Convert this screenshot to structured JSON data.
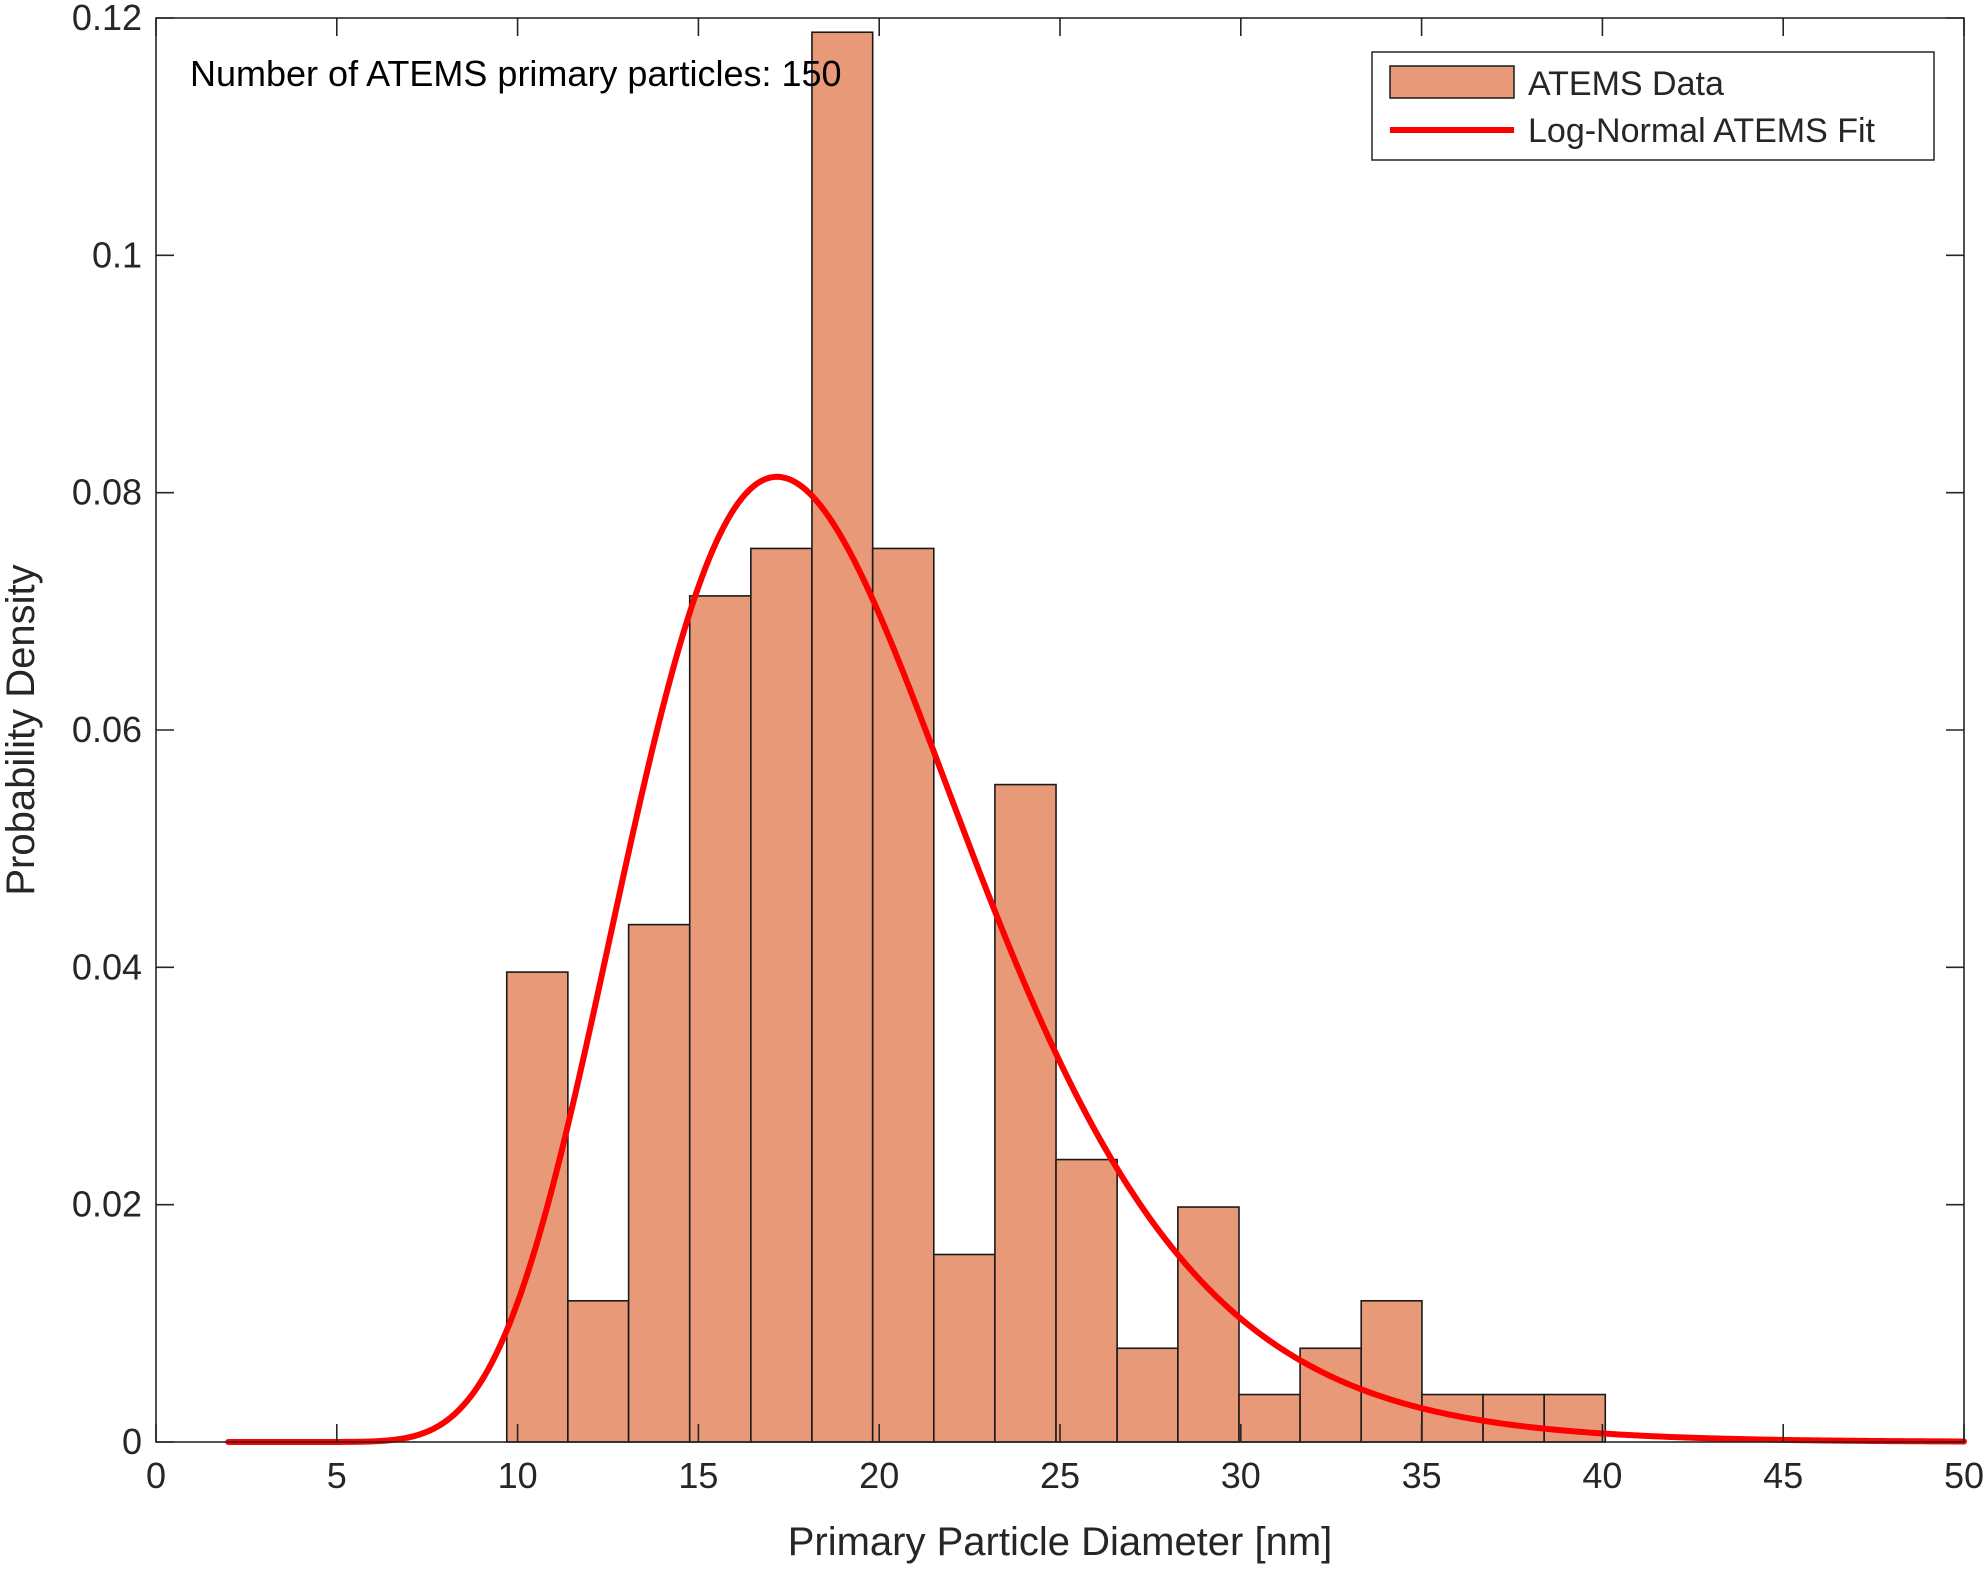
{
  "chart_data": {
    "type": "bar",
    "title": "",
    "xlabel": "Primary Particle Diameter [nm]",
    "ylabel": "Probability Density",
    "xlim": [
      0,
      50
    ],
    "ylim": [
      0,
      0.12
    ],
    "xticks": [
      0,
      5,
      10,
      15,
      20,
      25,
      30,
      35,
      40,
      45,
      50
    ],
    "yticks": [
      0,
      0.02,
      0.04,
      0.06,
      0.08,
      0.1,
      0.12
    ],
    "xtick_labels": [
      "0",
      "5",
      "10",
      "15",
      "20",
      "25",
      "30",
      "35",
      "40",
      "45",
      "50"
    ],
    "ytick_labels": [
      "0",
      "0.02",
      "0.04",
      "0.06",
      "0.08",
      "0.1",
      "0.12"
    ],
    "grid": false,
    "legend_position": "top-right",
    "annotation": "Number of ATEMS  primary particles: 150",
    "histogram": {
      "name": "ATEMS Data",
      "color": "#E89A78",
      "edge_color": "#1a1a1a",
      "bin_edges": [
        9.7,
        11.39,
        13.07,
        14.76,
        16.45,
        18.14,
        19.82,
        21.51,
        23.2,
        24.89,
        26.58,
        28.26,
        29.95,
        31.64,
        33.33,
        35.01,
        36.7,
        38.39,
        40.08
      ],
      "values": [
        0.0396,
        0.0119,
        0.0436,
        0.0713,
        0.0753,
        0.1188,
        0.0753,
        0.0158,
        0.0554,
        0.0238,
        0.0079,
        0.0198,
        0.004,
        0.0079,
        0.0119,
        0.004,
        0.004,
        0.004
      ]
    },
    "fit": {
      "name": "Log-Normal ATEMS Fit",
      "color": "#FF0000",
      "distribution": "lognormal",
      "mu": 2.919,
      "sigma": 0.275,
      "x_range": [
        2,
        50
      ]
    }
  }
}
